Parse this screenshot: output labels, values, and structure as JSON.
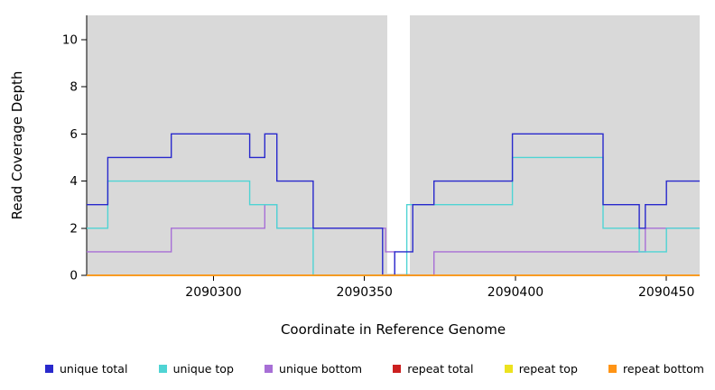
{
  "chart_data": {
    "type": "line",
    "subtype": "step",
    "title": "",
    "xlabel": "Coordinate in Reference Genome",
    "ylabel": "Read Coverage Depth",
    "xlim": [
      2090258,
      2090461
    ],
    "ylim": [
      0,
      11.03
    ],
    "x_ticks": [
      2090300,
      2090350,
      2090400,
      2090450
    ],
    "y_ticks": [
      0,
      2,
      4,
      6,
      8,
      10
    ],
    "panel_color": "#d9d9d9",
    "grid": false,
    "legend_position": "bottom",
    "gap_region": {
      "x_start": 2090357.5,
      "x_end": 2090365,
      "color": "#ffffff"
    },
    "series": [
      {
        "name": "unique total",
        "color": "#2929cc",
        "points": [
          [
            2090258,
            3
          ],
          [
            2090265,
            5
          ],
          [
            2090286,
            6
          ],
          [
            2090312,
            5
          ],
          [
            2090317,
            6
          ],
          [
            2090321,
            4
          ],
          [
            2090333,
            2
          ],
          [
            2090356,
            0
          ],
          [
            2090360,
            1
          ],
          [
            2090366,
            3
          ],
          [
            2090373,
            4
          ],
          [
            2090399,
            6
          ],
          [
            2090429,
            3
          ],
          [
            2090441,
            2
          ],
          [
            2090443,
            3
          ],
          [
            2090450,
            4
          ]
        ]
      },
      {
        "name": "unique top",
        "color": "#4fd4d4",
        "points": [
          [
            2090258,
            2
          ],
          [
            2090265,
            4
          ],
          [
            2090312,
            3
          ],
          [
            2090321,
            2
          ],
          [
            2090333,
            0
          ],
          [
            2090364,
            3
          ],
          [
            2090399,
            5
          ],
          [
            2090429,
            2
          ],
          [
            2090441,
            1
          ],
          [
            2090450,
            2
          ]
        ]
      },
      {
        "name": "unique bottom",
        "color": "#a76fd6",
        "points": [
          [
            2090258,
            1
          ],
          [
            2090286,
            2
          ],
          [
            2090317,
            3
          ],
          [
            2090321,
            2
          ],
          [
            2090357,
            1
          ],
          [
            2090360,
            0
          ],
          [
            2090373,
            1
          ],
          [
            2090443,
            2
          ]
        ]
      },
      {
        "name": "repeat total",
        "color": "#cc2020",
        "points": [
          [
            2090258,
            0
          ]
        ]
      },
      {
        "name": "repeat top",
        "color": "#ece21f",
        "points": [
          [
            2090258,
            0
          ]
        ]
      },
      {
        "name": "repeat bottom",
        "color": "#ff9415",
        "points": [
          [
            2090258,
            0
          ]
        ]
      }
    ]
  },
  "legend": {
    "items": [
      {
        "label": "unique total",
        "color": "#2929cc"
      },
      {
        "label": "unique top",
        "color": "#4fd4d4"
      },
      {
        "label": "unique bottom",
        "color": "#a76fd6"
      },
      {
        "label": "repeat total",
        "color": "#cc2020"
      },
      {
        "label": "repeat top",
        "color": "#ece21f"
      },
      {
        "label": "repeat bottom",
        "color": "#ff9415"
      }
    ]
  }
}
